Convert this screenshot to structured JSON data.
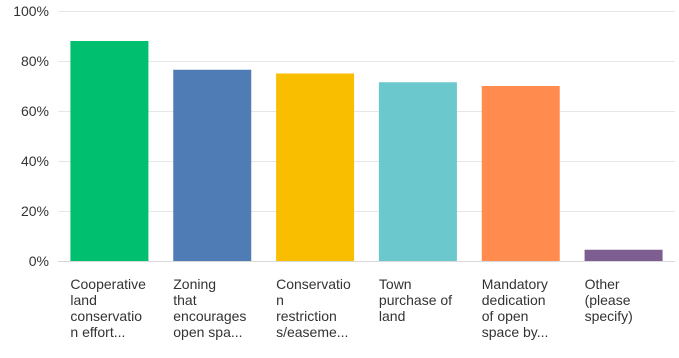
{
  "chart_data": {
    "type": "bar",
    "title": "",
    "xlabel": "",
    "ylabel": "",
    "ylim": [
      0,
      100
    ],
    "yticks": [
      "0%",
      "20%",
      "40%",
      "60%",
      "80%",
      "100%"
    ],
    "grid": true,
    "categories": [
      {
        "lines": [
          "Cooperative",
          "land",
          "conservatio",
          "n effort..."
        ]
      },
      {
        "lines": [
          "Zoning",
          "that",
          "encourages",
          "open spa..."
        ]
      },
      {
        "lines": [
          "Conservatio",
          "n",
          "restriction",
          "s/easeme..."
        ]
      },
      {
        "lines": [
          "Town",
          "purchase of",
          "land"
        ]
      },
      {
        "lines": [
          "Mandatory",
          "dedication",
          "of open",
          "space by..."
        ]
      },
      {
        "lines": [
          "Other",
          "(please",
          "specify)"
        ]
      }
    ],
    "values": [
      88.0,
      76.5,
      75.0,
      71.5,
      70.0,
      4.5
    ],
    "colors": [
      "#00bf6f",
      "#507cb6",
      "#f9be00",
      "#6bc8cd",
      "#ff8b4f",
      "#7d5e90"
    ]
  }
}
